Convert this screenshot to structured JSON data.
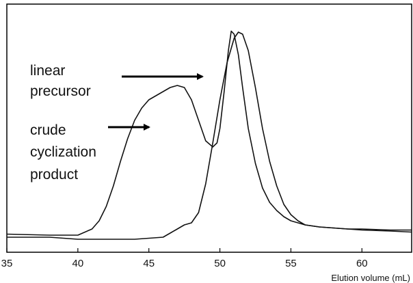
{
  "chart_data": {
    "type": "line",
    "title": "",
    "xlabel": "Elution volume (mL)",
    "ylabel": "",
    "xlim": [
      35,
      63.5
    ],
    "ylim": [
      0,
      1
    ],
    "grid": false,
    "x_ticks": [
      35,
      40,
      45,
      50,
      55,
      60
    ],
    "x_tick_labels": [
      "35",
      "40",
      "45",
      "50",
      "55",
      "60"
    ],
    "series": [
      {
        "name": "crude cyclization product",
        "x": [
          35,
          38,
          40,
          41,
          41.5,
          42,
          42.5,
          43,
          43.5,
          44,
          44.5,
          45,
          45.5,
          46,
          46.5,
          47,
          47.5,
          48,
          48.5,
          49,
          49.5,
          49.8,
          50,
          50.3,
          50.6,
          50.8,
          51,
          51.3,
          51.6,
          52,
          52.5,
          53,
          53.5,
          54,
          54.5,
          55,
          56,
          57,
          58,
          59,
          60,
          62,
          63.5
        ],
        "y": [
          0.005,
          0.0,
          0.0,
          0.03,
          0.07,
          0.14,
          0.24,
          0.36,
          0.47,
          0.56,
          0.62,
          0.66,
          0.68,
          0.7,
          0.72,
          0.73,
          0.72,
          0.66,
          0.56,
          0.46,
          0.43,
          0.45,
          0.52,
          0.7,
          0.9,
          0.995,
          0.98,
          0.88,
          0.72,
          0.52,
          0.35,
          0.23,
          0.16,
          0.12,
          0.09,
          0.07,
          0.05,
          0.04,
          0.035,
          0.03,
          0.025,
          0.02,
          0.015
        ]
      },
      {
        "name": "linear precursor",
        "x": [
          35,
          38,
          40,
          42,
          44,
          46,
          46.5,
          47,
          47.5,
          48,
          48.5,
          49,
          49.5,
          50,
          50.5,
          51,
          51.3,
          51.6,
          52,
          52.5,
          53,
          53.5,
          54,
          54.5,
          55,
          55.5,
          56,
          57,
          58,
          59,
          60,
          62,
          63.5
        ],
        "y": [
          -0.01,
          -0.01,
          -0.02,
          -0.02,
          -0.02,
          -0.01,
          0.01,
          0.03,
          0.05,
          0.06,
          0.11,
          0.25,
          0.45,
          0.66,
          0.84,
          0.96,
          0.99,
          0.98,
          0.9,
          0.72,
          0.52,
          0.36,
          0.24,
          0.15,
          0.1,
          0.07,
          0.05,
          0.04,
          0.035,
          0.03,
          0.03,
          0.025,
          0.025
        ]
      }
    ],
    "annotations": [
      {
        "lines": [
          "linear",
          "precursor"
        ],
        "points_to": "linear precursor"
      },
      {
        "lines": [
          "crude",
          "cyclization",
          "product"
        ],
        "points_to": "crude cyclization product"
      }
    ]
  }
}
